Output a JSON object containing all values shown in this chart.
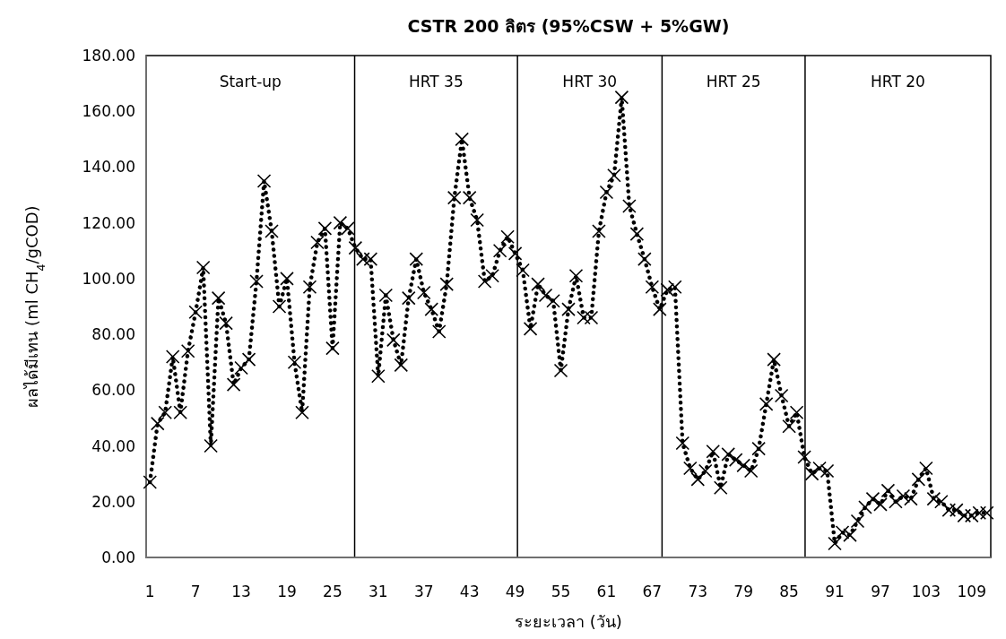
{
  "chart_data": {
    "type": "line",
    "title": "CSTR 200 ลิตร (95%CSW + 5%GW)",
    "xlabel": "ระยะเวลา (วัน)",
    "ylabel": "ผลได้มีเทน (ml CH$_{4}$/gCOD)",
    "x": [
      1,
      2,
      3,
      4,
      5,
      6,
      7,
      8,
      9,
      10,
      11,
      12,
      13,
      14,
      15,
      16,
      17,
      18,
      19,
      20,
      21,
      22,
      23,
      24,
      25,
      26,
      27,
      28,
      29,
      30,
      31,
      32,
      33,
      34,
      35,
      36,
      37,
      38,
      39,
      40,
      41,
      42,
      43,
      44,
      45,
      46,
      47,
      48,
      49,
      50,
      51,
      52,
      53,
      54,
      55,
      56,
      57,
      58,
      59,
      60,
      61,
      62,
      63,
      64,
      65,
      66,
      67,
      68,
      69,
      70,
      71,
      72,
      73,
      74,
      75,
      76,
      77,
      78,
      79,
      80,
      81,
      82,
      83,
      84,
      85,
      86,
      87,
      88,
      89,
      90,
      91,
      92,
      93,
      94,
      95,
      96,
      97,
      98,
      99,
      100,
      101,
      102,
      103,
      104,
      105,
      106,
      107,
      108,
      109,
      110,
      111
    ],
    "series": [
      {
        "color": "#000000",
        "values": [
          27,
          48,
          52,
          72,
          52,
          74,
          88,
          104,
          40,
          93,
          84,
          62,
          68,
          71,
          99,
          135,
          117,
          90,
          100,
          70,
          52,
          97,
          113,
          118,
          75,
          120,
          118,
          111,
          107,
          107,
          65,
          94,
          78,
          69,
          93,
          107,
          95,
          89,
          81,
          98,
          129,
          150,
          129,
          121,
          99,
          101,
          110,
          115,
          109,
          103,
          82,
          98,
          94,
          92,
          67,
          89,
          101,
          86,
          86,
          117,
          131,
          137,
          165,
          126,
          116,
          107,
          97,
          89,
          96,
          97,
          41,
          32,
          28,
          31,
          38,
          25,
          37,
          35,
          33,
          31,
          39,
          55,
          71,
          58,
          47,
          52,
          36,
          30,
          32,
          31,
          5,
          9,
          8,
          13,
          18,
          21,
          19,
          24,
          20,
          22,
          21,
          28,
          32,
          21,
          20,
          17,
          17,
          15,
          15,
          16,
          16
        ]
      }
    ],
    "xlim": [
      0.5,
      111.5
    ],
    "xticks": [
      1,
      7,
      13,
      19,
      25,
      31,
      37,
      43,
      49,
      55,
      61,
      67,
      73,
      79,
      85,
      91,
      97,
      103,
      109
    ],
    "ylim": [
      0,
      180
    ],
    "yticks": [
      {
        "value": 0,
        "label": "0.00"
      },
      {
        "value": 20,
        "label": "20.00"
      },
      {
        "value": 40,
        "label": "40.00"
      },
      {
        "value": 60,
        "label": "60.00"
      },
      {
        "value": 80,
        "label": "80.00"
      },
      {
        "value": 100,
        "label": "100.00"
      },
      {
        "value": 120,
        "label": "120.00"
      },
      {
        "value": 140,
        "label": "140.00"
      },
      {
        "value": 160,
        "label": "160.00"
      },
      {
        "value": 180,
        "label": "180.00"
      }
    ],
    "ref_lines": [
      {
        "axis": "x",
        "value": 27.9
      },
      {
        "axis": "x",
        "value": 49.3
      },
      {
        "axis": "x",
        "value": 68.3
      },
      {
        "axis": "x",
        "value": 87.1
      }
    ],
    "annotations": [
      "Start-up",
      "HRT 35",
      "HRT 30",
      "HRT 25",
      "HRT 20"
    ],
    "marker": "cross",
    "line_style": "dotted"
  }
}
